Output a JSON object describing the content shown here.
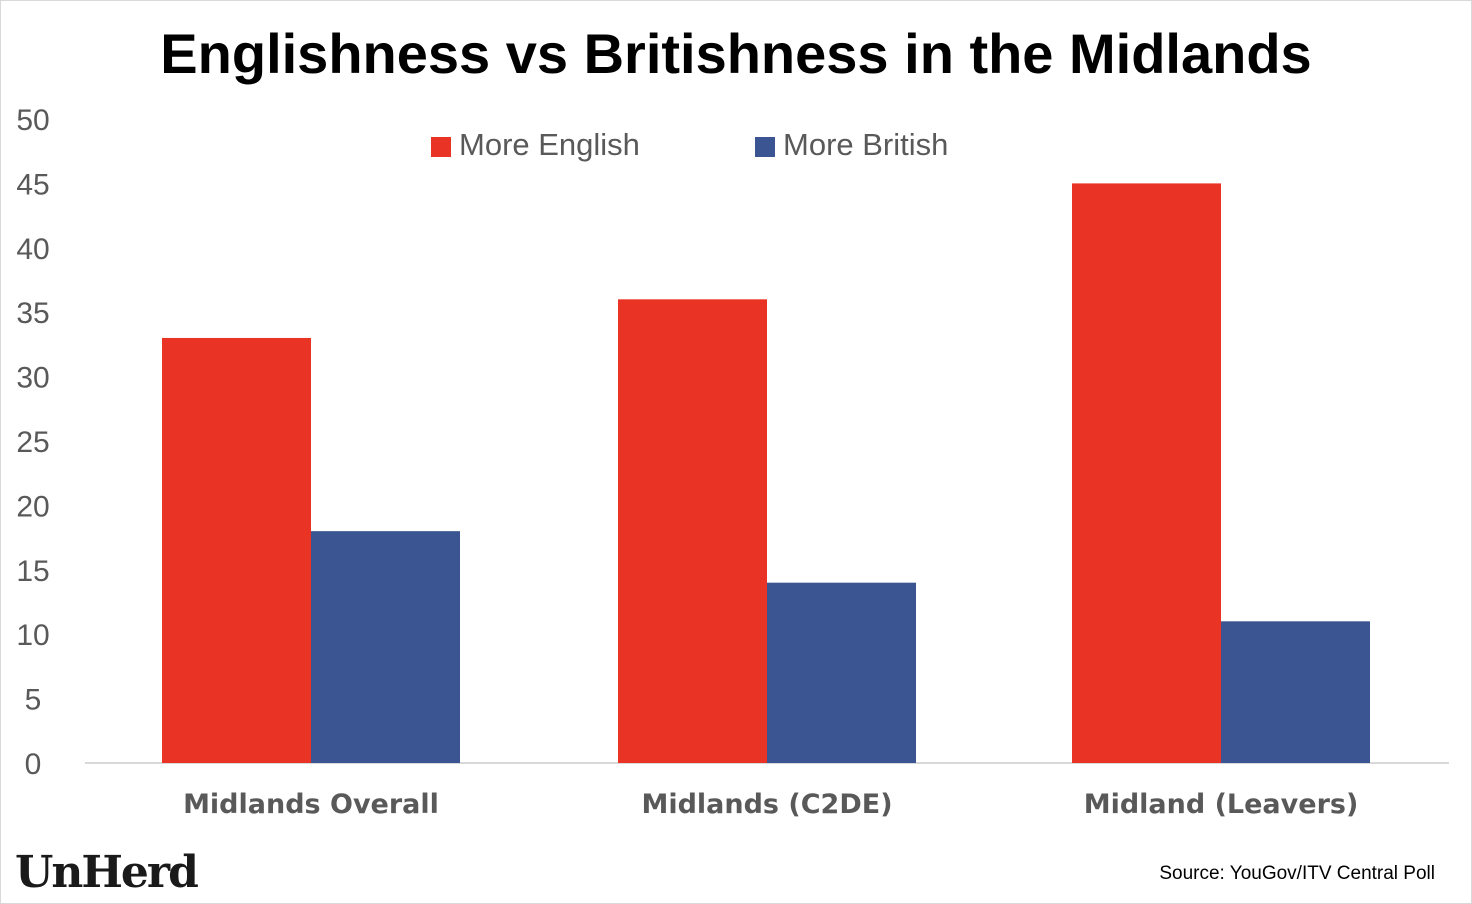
{
  "chart_data": {
    "type": "bar",
    "title": "Englishness vs Britishness in the Midlands",
    "xlabel": "",
    "ylabel": "",
    "ylim": [
      0,
      50
    ],
    "yticks": [
      0,
      5,
      10,
      15,
      20,
      25,
      30,
      35,
      40,
      45,
      50
    ],
    "grid": false,
    "legend_position": "top-center",
    "categories": [
      "Midlands Overall",
      "Midlands (C2DE)",
      "Midland (Leavers)"
    ],
    "series": [
      {
        "name": "More English",
        "color": "#e83325",
        "values": [
          33,
          36,
          45
        ]
      },
      {
        "name": "More British",
        "color": "#3a5592",
        "values": [
          18,
          14,
          11
        ]
      }
    ]
  },
  "branding": {
    "logo": "UnHerd",
    "source": "Source: YouGov/ITV Central Poll"
  }
}
